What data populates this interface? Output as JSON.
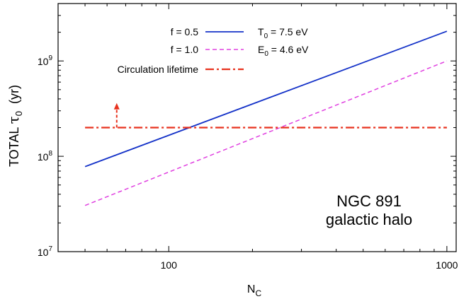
{
  "chart_data": {
    "type": "line",
    "xlabel": {
      "main": "N",
      "sub": "C"
    },
    "ylabel": {
      "prefix": "TOTAL ",
      "symbol": "τ",
      "sub": "0",
      "unit": "(yr)"
    },
    "x_scale": "log",
    "y_scale": "log",
    "xlim": [
      40,
      1080
    ],
    "ylim": [
      10000000,
      4000000000
    ],
    "x_ticks": [
      {
        "value": 100,
        "label": "100"
      },
      {
        "value": 1000,
        "label": "1000"
      }
    ],
    "y_ticks": [
      {
        "value": 10000000,
        "base": "10",
        "exp": "7"
      },
      {
        "value": 100000000,
        "base": "10",
        "exp": "8"
      },
      {
        "value": 1000000000,
        "base": "10",
        "exp": "9"
      }
    ],
    "series": [
      {
        "name": "f = 0.5",
        "color": "#1432c8",
        "style": "solid",
        "x": [
          50,
          1000
        ],
        "y": [
          78000000,
          2050000000
        ]
      },
      {
        "name": "f = 1.0",
        "color": "#e040e0",
        "style": "dashed",
        "x": [
          50,
          1000
        ],
        "y": [
          30500000,
          1000000000
        ]
      },
      {
        "name": "Circulation lifetime",
        "color": "#e8321e",
        "style": "dashdot",
        "x": [
          50,
          1000
        ],
        "y": [
          200000000,
          200000000
        ]
      }
    ],
    "arrow": {
      "x": 65,
      "y_from": 200000000,
      "y_to": 350000000,
      "color": "#e8321e"
    },
    "params": [
      {
        "main": "T",
        "sub": "0",
        "rest": " = 7.5 eV"
      },
      {
        "main": "E",
        "sub": "0",
        "rest": " = 4.6 eV"
      }
    ],
    "annotation": [
      "NGC 891",
      "galactic halo"
    ],
    "legend_position": "top-left",
    "grid": false
  }
}
